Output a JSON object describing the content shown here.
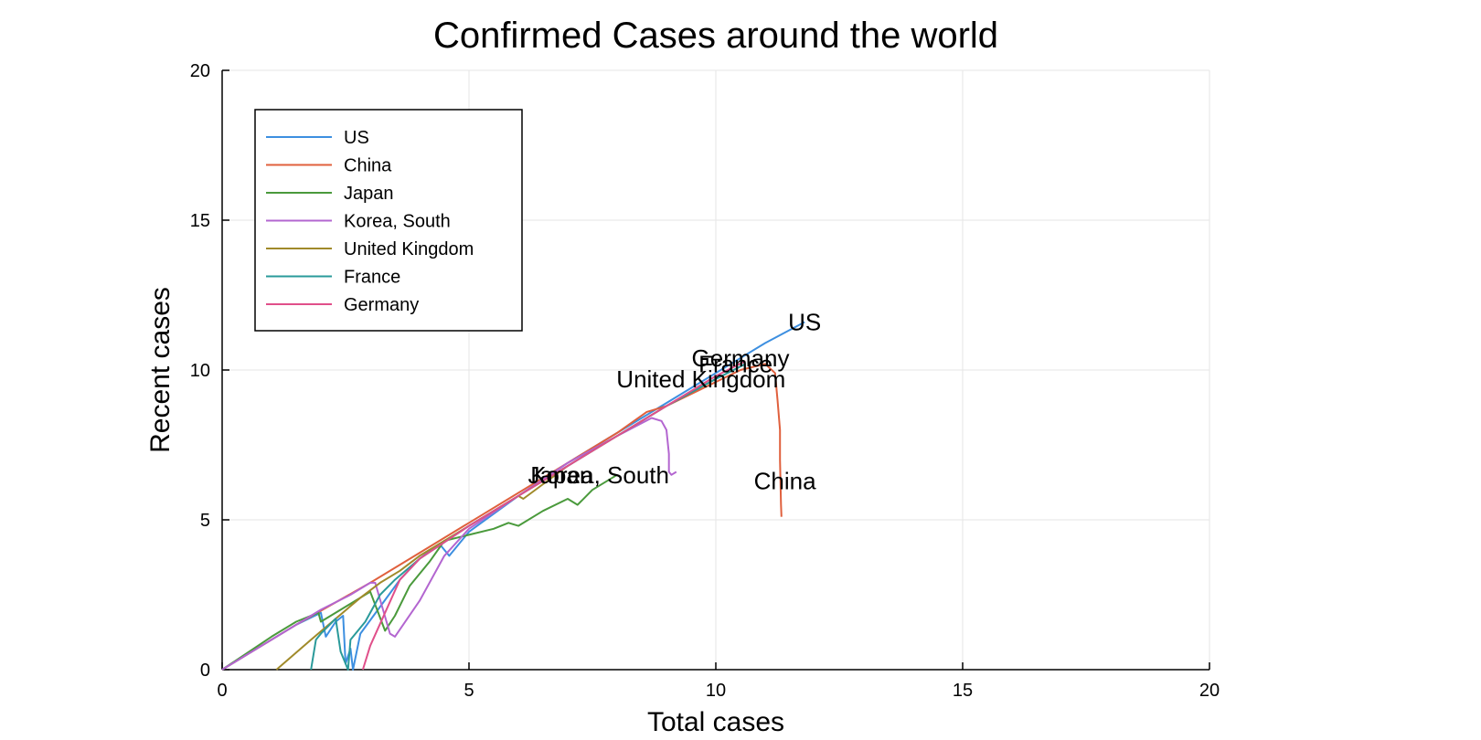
{
  "chart_data": {
    "type": "line",
    "title": "Confirmed Cases around the world",
    "xlabel": "Total cases",
    "ylabel": "Recent cases",
    "xlim": [
      0,
      20
    ],
    "ylim": [
      0,
      20
    ],
    "xticks": [
      "0",
      "5",
      "10",
      "15",
      "20"
    ],
    "yticks": [
      "0",
      "5",
      "10",
      "15",
      "20"
    ],
    "grid": true,
    "legend_position": "top-left",
    "series": [
      {
        "name": "US",
        "color": "#3d8fe0",
        "points": [
          [
            0,
            0
          ],
          [
            1.5,
            1.5
          ],
          [
            2.0,
            1.9
          ],
          [
            2.1,
            1.1
          ],
          [
            2.3,
            1.6
          ],
          [
            2.45,
            1.8
          ],
          [
            2.5,
            0.2
          ],
          [
            2.6,
            0.7
          ],
          [
            2.65,
            0
          ],
          [
            2.8,
            1.2
          ],
          [
            3.2,
            2.1
          ],
          [
            3.6,
            3.0
          ],
          [
            4.0,
            3.7
          ],
          [
            4.4,
            4.2
          ],
          [
            4.6,
            3.8
          ],
          [
            5.0,
            4.6
          ],
          [
            6.0,
            5.8
          ],
          [
            7.0,
            6.9
          ],
          [
            8.0,
            7.9
          ],
          [
            9.0,
            8.9
          ],
          [
            10.0,
            9.9
          ],
          [
            11.0,
            10.9
          ],
          [
            11.8,
            11.6
          ]
        ],
        "label": {
          "text": "US",
          "x": 11.8,
          "y": 11.6
        }
      },
      {
        "name": "China",
        "color": "#e0603d",
        "points": [
          [
            0,
            0
          ],
          [
            1.5,
            1.5
          ],
          [
            3.0,
            2.9
          ],
          [
            4.0,
            3.9
          ],
          [
            5.0,
            4.9
          ],
          [
            6.0,
            5.9
          ],
          [
            7.0,
            6.9
          ],
          [
            8.0,
            7.9
          ],
          [
            8.6,
            8.6
          ],
          [
            9.0,
            8.8
          ],
          [
            10.0,
            9.6
          ],
          [
            10.5,
            10.0
          ],
          [
            11.0,
            10.2
          ],
          [
            11.2,
            9.9
          ],
          [
            11.25,
            9.0
          ],
          [
            11.3,
            8.0
          ],
          [
            11.3,
            7.0
          ],
          [
            11.32,
            5.5
          ],
          [
            11.33,
            5.1
          ]
        ],
        "label": {
          "text": "China",
          "x": 11.4,
          "y": 6.3
        }
      },
      {
        "name": "Japan",
        "color": "#4a9a3c",
        "points": [
          [
            0,
            0
          ],
          [
            1.0,
            1.1
          ],
          [
            1.5,
            1.6
          ],
          [
            1.95,
            1.9
          ],
          [
            2.0,
            1.6
          ],
          [
            3.0,
            2.6
          ],
          [
            3.3,
            1.3
          ],
          [
            3.5,
            1.8
          ],
          [
            3.8,
            2.8
          ],
          [
            4.2,
            3.6
          ],
          [
            4.5,
            4.3
          ],
          [
            5.0,
            4.5
          ],
          [
            5.5,
            4.7
          ],
          [
            5.8,
            4.9
          ],
          [
            6.0,
            4.8
          ],
          [
            6.5,
            5.3
          ],
          [
            7.0,
            5.7
          ],
          [
            7.2,
            5.5
          ],
          [
            7.5,
            6.0
          ],
          [
            8.0,
            6.5
          ]
        ],
        "label": {
          "text": "Japan",
          "x": 6.85,
          "y": 6.5
        }
      },
      {
        "name": "Korea, South",
        "color": "#b366d0",
        "points": [
          [
            0,
            0
          ],
          [
            1.4,
            1.4
          ],
          [
            2.0,
            2.0
          ],
          [
            2.6,
            2.5
          ],
          [
            3.0,
            2.9
          ],
          [
            3.1,
            2.9
          ],
          [
            3.4,
            1.2
          ],
          [
            3.5,
            1.1
          ],
          [
            4.0,
            2.3
          ],
          [
            4.5,
            3.8
          ],
          [
            5.0,
            4.7
          ],
          [
            6.0,
            5.8
          ],
          [
            7.0,
            6.9
          ],
          [
            8.0,
            7.8
          ],
          [
            8.7,
            8.4
          ],
          [
            8.9,
            8.3
          ],
          [
            9.0,
            8.0
          ],
          [
            9.05,
            7.2
          ],
          [
            9.05,
            6.6
          ],
          [
            9.1,
            6.5
          ],
          [
            9.2,
            6.6
          ]
        ],
        "label": {
          "text": "Korea, South",
          "x": 7.65,
          "y": 6.5
        }
      },
      {
        "name": "United Kingdom",
        "color": "#a08a2a",
        "points": [
          [
            1.1,
            0
          ],
          [
            1.8,
            1.0
          ],
          [
            2.3,
            1.7
          ],
          [
            2.8,
            2.4
          ],
          [
            3.2,
            2.9
          ],
          [
            3.6,
            3.3
          ],
          [
            4.0,
            3.8
          ],
          [
            5.0,
            4.8
          ],
          [
            6.0,
            5.8
          ],
          [
            6.1,
            5.7
          ],
          [
            7.0,
            6.8
          ],
          [
            8.0,
            7.8
          ],
          [
            9.0,
            8.8
          ],
          [
            10.0,
            9.7
          ]
        ],
        "label": {
          "text": "United Kingdom",
          "x": 9.7,
          "y": 9.7
        }
      },
      {
        "name": "France",
        "color": "#2a9a9a",
        "points": [
          [
            1.8,
            0
          ],
          [
            1.9,
            1.0
          ],
          [
            2.0,
            1.2
          ],
          [
            2.3,
            1.7
          ],
          [
            2.4,
            0.6
          ],
          [
            2.55,
            0
          ],
          [
            2.6,
            1.0
          ],
          [
            2.9,
            1.6
          ],
          [
            3.2,
            2.5
          ],
          [
            3.5,
            3.0
          ],
          [
            4.0,
            3.7
          ],
          [
            5.0,
            4.8
          ],
          [
            6.0,
            5.8
          ],
          [
            7.0,
            6.8
          ],
          [
            8.0,
            7.8
          ],
          [
            9.0,
            8.8
          ],
          [
            10.0,
            9.7
          ],
          [
            10.6,
            10.2
          ]
        ],
        "label": {
          "text": "France",
          "x": 10.4,
          "y": 10.2
        }
      },
      {
        "name": "Germany",
        "color": "#e04f8a",
        "points": [
          [
            2.85,
            0
          ],
          [
            3.0,
            0.8
          ],
          [
            3.3,
            1.9
          ],
          [
            3.6,
            3.0
          ],
          [
            4.0,
            3.7
          ],
          [
            5.0,
            4.8
          ],
          [
            6.0,
            5.8
          ],
          [
            7.0,
            6.8
          ],
          [
            8.0,
            7.8
          ],
          [
            9.0,
            8.8
          ],
          [
            10.0,
            9.8
          ],
          [
            10.6,
            10.3
          ]
        ],
        "label": {
          "text": "Germany",
          "x": 10.5,
          "y": 10.4
        }
      }
    ]
  }
}
